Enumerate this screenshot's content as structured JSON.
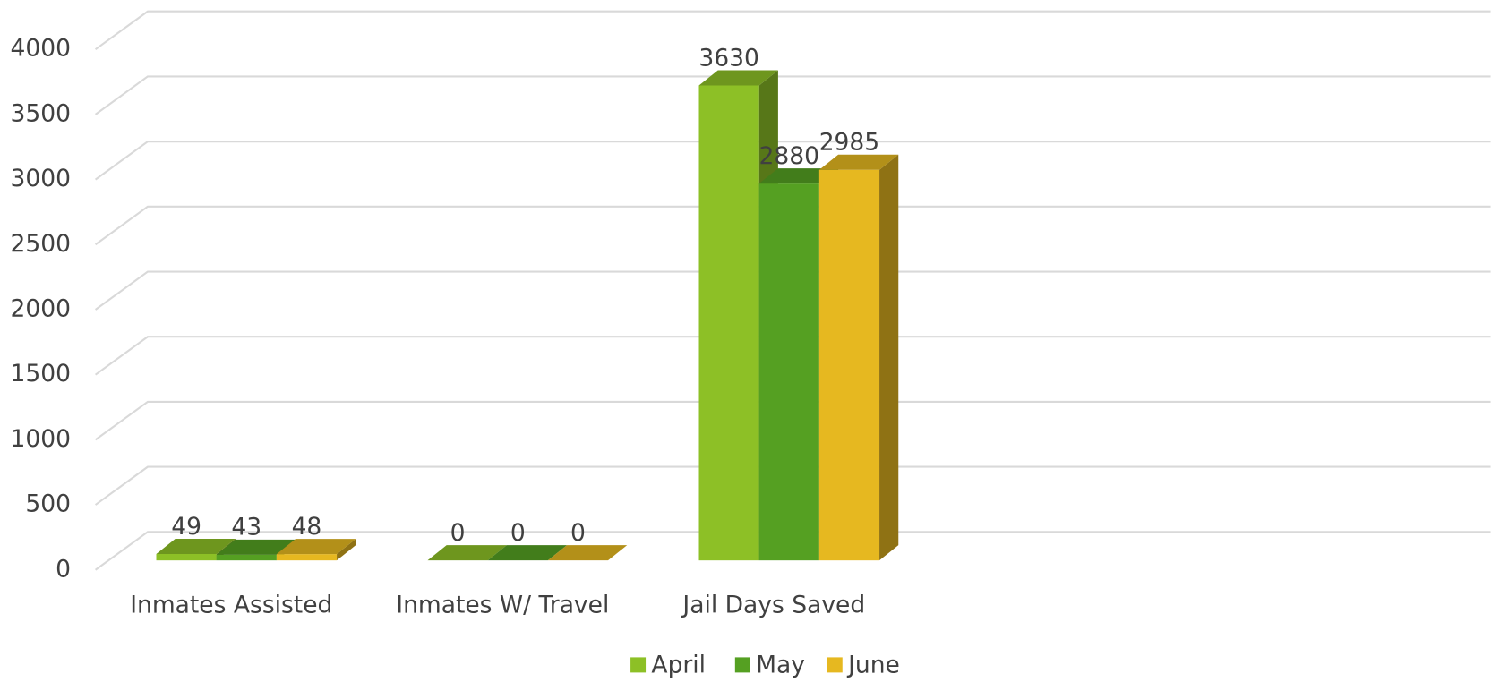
{
  "chart_data": {
    "type": "bar3d",
    "categories": [
      "Inmates Assisted",
      "Inmates W/ Travel",
      "Jail Days Saved"
    ],
    "series": [
      {
        "name": "April",
        "color": "#8dc026",
        "values": [
          49,
          0,
          3630
        ]
      },
      {
        "name": "May",
        "color": "#55a022",
        "values": [
          43,
          0,
          2880
        ]
      },
      {
        "name": "June",
        "color": "#e6b820",
        "values": [
          48,
          0,
          2985
        ]
      }
    ],
    "ylim": [
      0,
      4000
    ],
    "yticks": [
      0,
      500,
      1000,
      1500,
      2000,
      2500,
      3000,
      3500,
      4000
    ],
    "grid": true,
    "legend": "bottom"
  }
}
